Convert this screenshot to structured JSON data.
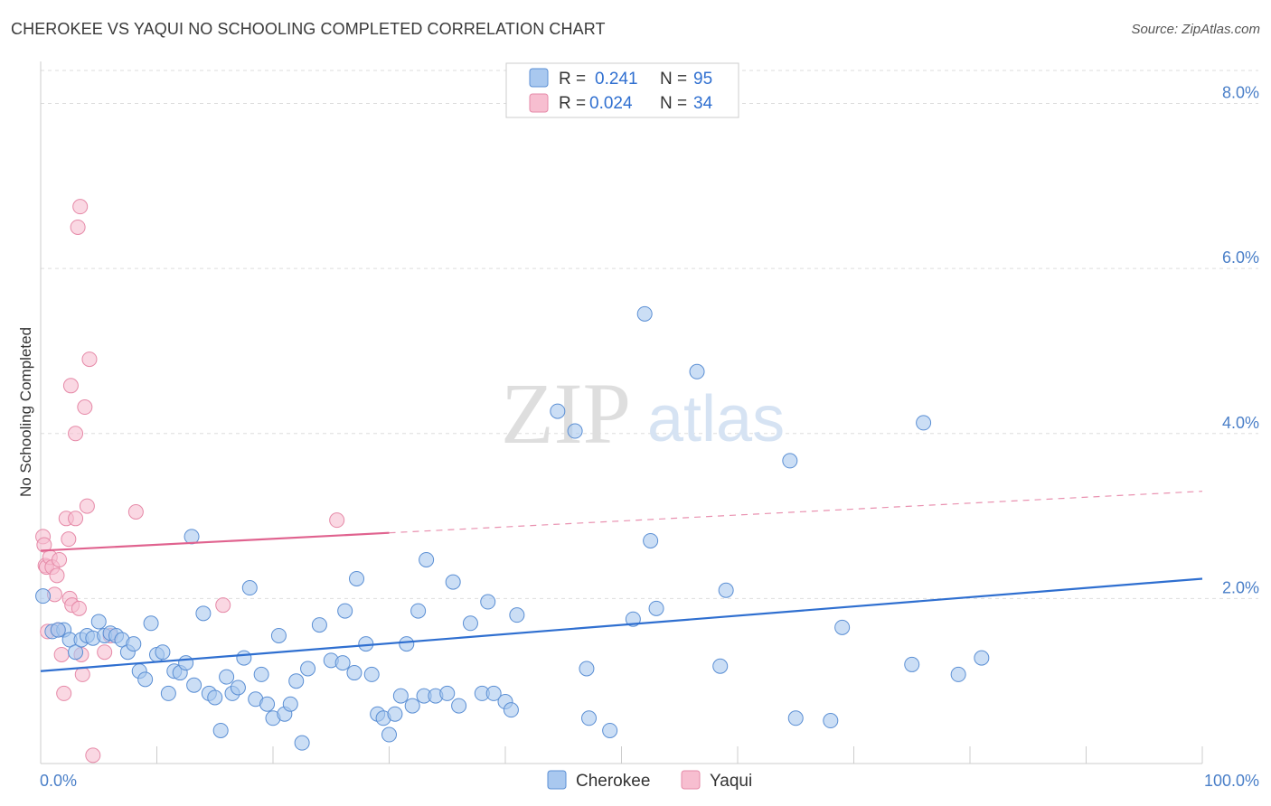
{
  "title": "CHEROKEE VS YAQUI NO SCHOOLING COMPLETED CORRELATION CHART",
  "source": "Source: ZipAtlas.com",
  "watermark": {
    "zip": "ZIP",
    "atlas": "atlas"
  },
  "colors": {
    "cherokee_fill": "#a9c8ef",
    "cherokee_stroke": "#5b8fd4",
    "cherokee_line": "#2f6fd0",
    "yaqui_fill": "#f7bed0",
    "yaqui_stroke": "#e68aa8",
    "yaqui_line": "#e0638f",
    "tick_text": "#4a7fc8",
    "grid": "#dddddd"
  },
  "legend_top": {
    "rows": [
      {
        "r_label": "R =",
        "r_value": "0.241",
        "n_label": "N =",
        "n_value": "95"
      },
      {
        "r_label": "R =",
        "r_value": "0.024",
        "n_label": "N =",
        "n_value": "34"
      }
    ]
  },
  "legend_bottom": [
    "Cherokee",
    "Yaqui"
  ],
  "chart_data": {
    "type": "scatter",
    "title": "CHEROKEE VS YAQUI NO SCHOOLING COMPLETED CORRELATION CHART",
    "xlabel": "",
    "ylabel": "No Schooling Completed",
    "xlim": [
      0,
      100
    ],
    "ylim": [
      0,
      8.4
    ],
    "x_tick_labels": [
      "0.0%",
      "100.0%"
    ],
    "y_ticks": [
      2,
      4,
      6,
      8
    ],
    "y_tick_labels": [
      "2.0%",
      "4.0%",
      "6.0%",
      "8.0%"
    ],
    "grid": true,
    "legend_position": "top-center",
    "series": [
      {
        "name": "Cherokee",
        "R": 0.241,
        "N": 95,
        "trend": {
          "x": [
            0,
            100
          ],
          "y": [
            1.12,
            2.24
          ],
          "dashed_from": null
        },
        "points": [
          [
            0.2,
            2.03
          ],
          [
            1,
            1.6
          ],
          [
            2,
            1.62
          ],
          [
            1.5,
            1.62
          ],
          [
            2.5,
            1.5
          ],
          [
            3,
            1.35
          ],
          [
            3.5,
            1.5
          ],
          [
            4,
            1.55
          ],
          [
            4.5,
            1.52
          ],
          [
            5,
            1.72
          ],
          [
            5.5,
            1.55
          ],
          [
            6,
            1.58
          ],
          [
            6.5,
            1.55
          ],
          [
            7,
            1.5
          ],
          [
            7.5,
            1.35
          ],
          [
            8,
            1.45
          ],
          [
            8.5,
            1.12
          ],
          [
            9,
            1.02
          ],
          [
            9.5,
            1.7
          ],
          [
            10,
            1.32
          ],
          [
            10.5,
            1.35
          ],
          [
            11,
            0.85
          ],
          [
            11.5,
            1.12
          ],
          [
            12,
            1.1
          ],
          [
            12.5,
            1.22
          ],
          [
            13,
            2.75
          ],
          [
            13.2,
            0.95
          ],
          [
            14,
            1.82
          ],
          [
            14.5,
            0.85
          ],
          [
            15,
            0.8
          ],
          [
            15.5,
            0.4
          ],
          [
            16,
            1.05
          ],
          [
            16.5,
            0.85
          ],
          [
            17,
            0.92
          ],
          [
            17.5,
            1.28
          ],
          [
            18,
            2.13
          ],
          [
            18.5,
            0.78
          ],
          [
            19,
            1.08
          ],
          [
            19.5,
            0.72
          ],
          [
            20,
            0.55
          ],
          [
            20.5,
            1.55
          ],
          [
            21,
            0.6
          ],
          [
            21.5,
            0.72
          ],
          [
            22,
            1.0
          ],
          [
            22.5,
            0.25
          ],
          [
            23,
            1.15
          ],
          [
            24,
            1.68
          ],
          [
            25,
            1.25
          ],
          [
            26,
            1.22
          ],
          [
            26.2,
            1.85
          ],
          [
            27,
            1.1
          ],
          [
            27.2,
            2.24
          ],
          [
            28,
            1.45
          ],
          [
            28.5,
            1.08
          ],
          [
            29,
            0.6
          ],
          [
            29.5,
            0.55
          ],
          [
            30,
            0.35
          ],
          [
            30.5,
            0.6
          ],
          [
            31,
            0.82
          ],
          [
            31.5,
            1.45
          ],
          [
            32,
            0.7
          ],
          [
            32.5,
            1.85
          ],
          [
            33,
            0.82
          ],
          [
            33.2,
            2.47
          ],
          [
            34,
            0.82
          ],
          [
            35,
            0.85
          ],
          [
            35.5,
            2.2
          ],
          [
            36,
            0.7
          ],
          [
            37,
            1.7
          ],
          [
            38,
            0.85
          ],
          [
            38.5,
            1.96
          ],
          [
            39,
            0.85
          ],
          [
            40,
            0.75
          ],
          [
            40.5,
            0.65
          ],
          [
            41,
            1.8
          ],
          [
            44.5,
            4.27
          ],
          [
            46,
            4.03
          ],
          [
            47,
            1.15
          ],
          [
            47.2,
            0.55
          ],
          [
            49,
            0.4
          ],
          [
            51,
            1.75
          ],
          [
            52,
            5.45
          ],
          [
            52.5,
            2.7
          ],
          [
            53,
            1.88
          ],
          [
            56.5,
            4.75
          ],
          [
            58.5,
            1.18
          ],
          [
            59,
            2.1
          ],
          [
            64.5,
            3.67
          ],
          [
            65,
            0.55
          ],
          [
            68,
            0.52
          ],
          [
            69,
            1.65
          ],
          [
            75,
            1.2
          ],
          [
            76,
            4.13
          ],
          [
            79,
            1.08
          ],
          [
            81,
            1.28
          ]
        ]
      },
      {
        "name": "Yaqui",
        "R": 0.024,
        "N": 34,
        "trend": {
          "x": [
            0,
            100
          ],
          "y": [
            2.58,
            3.3
          ],
          "dashed_from": 30
        },
        "points": [
          [
            0.2,
            2.75
          ],
          [
            0.3,
            2.65
          ],
          [
            0.4,
            2.4
          ],
          [
            0.5,
            2.38
          ],
          [
            0.6,
            1.6
          ],
          [
            0.8,
            2.5
          ],
          [
            1,
            2.38
          ],
          [
            1.2,
            2.05
          ],
          [
            1.4,
            2.28
          ],
          [
            1.5,
            1.62
          ],
          [
            1.6,
            2.47
          ],
          [
            1.8,
            1.32
          ],
          [
            2,
            0.85
          ],
          [
            2.2,
            2.97
          ],
          [
            2.4,
            2.72
          ],
          [
            2.5,
            2.0
          ],
          [
            2.7,
            1.92
          ],
          [
            3,
            2.97
          ],
          [
            3,
            4.0
          ],
          [
            2.6,
            4.58
          ],
          [
            3.2,
            6.5
          ],
          [
            3.3,
            1.88
          ],
          [
            3.4,
            6.75
          ],
          [
            3.5,
            1.32
          ],
          [
            3.6,
            1.08
          ],
          [
            3.8,
            4.32
          ],
          [
            4.0,
            3.12
          ],
          [
            4.2,
            4.9
          ],
          [
            4.5,
            0.1
          ],
          [
            5.5,
            1.35
          ],
          [
            6,
            1.55
          ],
          [
            8.2,
            3.05
          ],
          [
            15.7,
            1.92
          ],
          [
            25.5,
            2.95
          ]
        ]
      }
    ]
  }
}
